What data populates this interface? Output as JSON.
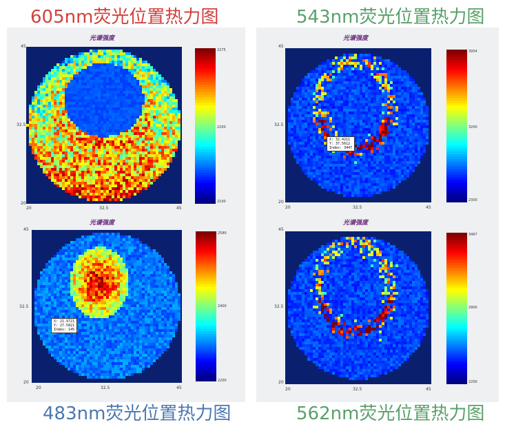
{
  "captions": {
    "top_left": {
      "text": "605nm荧光位置热力图",
      "color": "#d0413c"
    },
    "top_right": {
      "text": "543nm荧光位置热力图",
      "color": "#5aa06a"
    },
    "bottom_left": {
      "text": "483nm荧光位置热力图",
      "color": "#4a78b0"
    },
    "bottom_right": {
      "text": "562nm荧光位置热力图",
      "color": "#5aa06a"
    }
  },
  "chart_data": [
    {
      "type": "heatmap",
      "title": "光谱强度",
      "pattern": "ring-with-heavier-bottom",
      "x_ticks": [
        "20",
        "32.5",
        "45"
      ],
      "y_ticks": [
        "45",
        "32.5",
        "20"
      ],
      "colorbar_ticks": [
        "2275",
        "2200",
        "2100"
      ],
      "colormap": "jet"
    },
    {
      "type": "heatmap",
      "title": "光谱强度",
      "pattern": "thin-ring",
      "x_ticks": [
        "20",
        "32.5",
        "45"
      ],
      "y_ticks": [
        "45",
        "32.5",
        "20"
      ],
      "colorbar_ticks": [
        "3954",
        "3200",
        "2300"
      ],
      "tooltip": [
        "X: 32.4211",
        "Y: 37.5612",
        "Index: 3447"
      ],
      "colormap": "jet"
    },
    {
      "type": "heatmap",
      "title": "光谱强度",
      "pattern": "central-blob",
      "x_ticks": [
        "20",
        "32.5",
        "45"
      ],
      "y_ticks": [
        "45",
        "32.5",
        "20"
      ],
      "colorbar_ticks": [
        "2580",
        "2400",
        "2200"
      ],
      "tooltip": [
        "X: 21.9721",
        "Y: 27.5821",
        "Index: 145"
      ],
      "colormap": "jet"
    },
    {
      "type": "heatmap",
      "title": "光谱强度",
      "pattern": "thin-ring",
      "x_ticks": [
        "20",
        "32.5",
        "45"
      ],
      "y_ticks": [
        "45",
        "32.5",
        "20"
      ],
      "colorbar_ticks": [
        "3467",
        "2900",
        "2200"
      ],
      "colormap": "jet"
    }
  ]
}
